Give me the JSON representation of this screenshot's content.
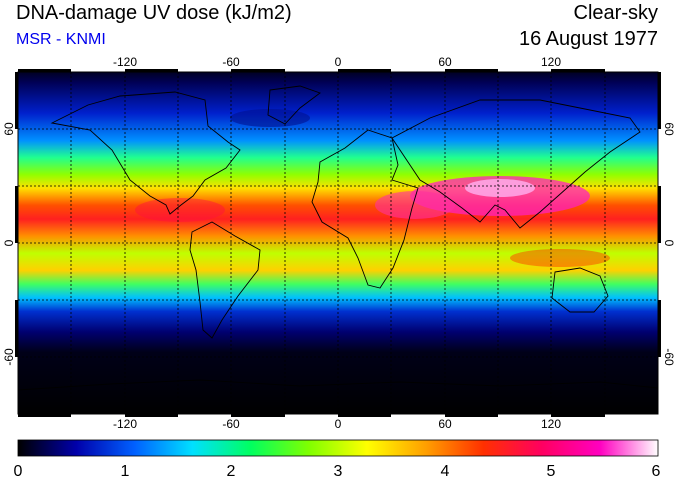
{
  "header": {
    "title": "DNA-damage UV dose (kJ/m2)",
    "credit": "MSR - KNMI",
    "sky_condition": "Clear-sky",
    "date": "16 August 1977"
  },
  "map": {
    "projection": "equirectangular",
    "lon_range": [
      -180,
      180
    ],
    "lat_range": [
      -90,
      90
    ],
    "grid_spacing_deg": 30,
    "lon_tick_labels": [
      "-120",
      "-60",
      "0",
      "60",
      "120"
    ],
    "lat_tick_labels_left": [
      "60",
      "0",
      "-60"
    ],
    "lat_tick_labels_right": [
      "60",
      "0",
      "-60"
    ]
  },
  "colorbar": {
    "unit": "kJ/m2",
    "min": 0,
    "max": 6,
    "tick_labels": [
      "0",
      "1",
      "2",
      "3",
      "4",
      "5",
      "6"
    ],
    "colors": [
      "#000000",
      "#0000aa",
      "#0060ff",
      "#00e0ff",
      "#00ff60",
      "#80ff00",
      "#ffff00",
      "#ffa000",
      "#ff3000",
      "#ff0060",
      "#ff00c0",
      "#ffffff"
    ]
  }
}
